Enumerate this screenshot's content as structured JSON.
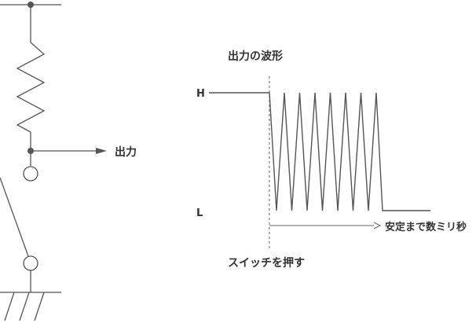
{
  "circuit": {
    "output_label": "出力"
  },
  "waveform": {
    "title": "出力の波形",
    "level_high_label": "H",
    "level_low_label": "L",
    "press_label": "スイッチを押す",
    "settle_label": "安定まで数ミリ秒",
    "spike_count": 7
  },
  "colors": {
    "line": "#555555",
    "text": "#333333",
    "background": "#ffffff"
  }
}
